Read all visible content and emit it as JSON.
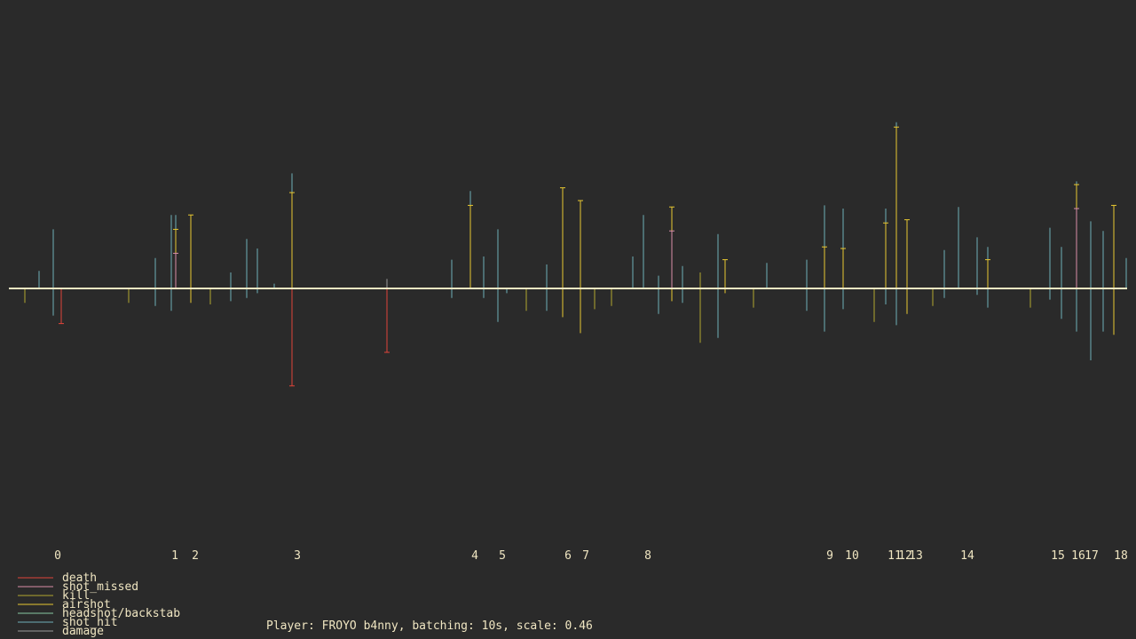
{
  "chart_data": {
    "type": "bar",
    "xlim": [
      0,
      1260
    ],
    "ylim": [
      -6,
      8
    ],
    "x_ticks": [
      {
        "label": "0",
        "x": 55
      },
      {
        "label": "1",
        "x": 187
      },
      {
        "label": "2",
        "x": 210
      },
      {
        "label": "3",
        "x": 325
      },
      {
        "label": "4",
        "x": 525
      },
      {
        "label": "5",
        "x": 556
      },
      {
        "label": "6",
        "x": 630
      },
      {
        "label": "7",
        "x": 650
      },
      {
        "label": "8",
        "x": 720
      },
      {
        "label": "9",
        "x": 925
      },
      {
        "label": "10",
        "x": 950
      },
      {
        "label": "11",
        "x": 998
      },
      {
        "label": "12",
        "x": 1010
      },
      {
        "label": "13",
        "x": 1022
      },
      {
        "label": "14",
        "x": 1080
      },
      {
        "label": "15",
        "x": 1182
      },
      {
        "label": "16",
        "x": 1205
      },
      {
        "label": "17",
        "x": 1220
      },
      {
        "label": "18",
        "x": 1253
      }
    ],
    "legend": [
      {
        "name": "death",
        "color": "#e0443a"
      },
      {
        "name": "shot_missed",
        "color": "#d98ea8"
      },
      {
        "name": "kill",
        "color": "#b3a830"
      },
      {
        "name": "airshot",
        "color": "#e8c832"
      },
      {
        "name": "headshot/backstab",
        "color": "#88c9a1"
      },
      {
        "name": "shot_hit",
        "color": "#6fb0b8"
      },
      {
        "name": "damage",
        "color": "#9a9a9a"
      }
    ],
    "bars": [
      {
        "x": 18,
        "up": 0,
        "down": 0.9,
        "series": "kill"
      },
      {
        "x": 34,
        "up": 1.1,
        "down": 0,
        "series": "shot_hit"
      },
      {
        "x": 50,
        "up": 3.7,
        "down": 1.7,
        "series": "shot_hit"
      },
      {
        "x": 59,
        "up": 0,
        "down": 2.2,
        "series": "death",
        "cap": true
      },
      {
        "x": 135,
        "up": 0,
        "down": 0.9,
        "series": "kill"
      },
      {
        "x": 165,
        "up": 1.9,
        "down": 1.1,
        "series": "shot_hit"
      },
      {
        "x": 183,
        "up": 4.6,
        "down": 1.4,
        "series": "shot_hit"
      },
      {
        "x": 188,
        "up": 4.6,
        "down": 0,
        "series": "shot_hit"
      },
      {
        "x": 188,
        "up": 3.7,
        "down": 0,
        "series": "airshot",
        "cap": true
      },
      {
        "x": 188,
        "up": 2.2,
        "down": 0,
        "series": "shot_missed",
        "cap": true
      },
      {
        "x": 205,
        "up": 4.6,
        "down": 0.9,
        "series": "airshot",
        "cap": true
      },
      {
        "x": 227,
        "up": 0,
        "down": 1.0,
        "series": "kill"
      },
      {
        "x": 250,
        "up": 1.0,
        "down": 0.8,
        "series": "shot_hit"
      },
      {
        "x": 268,
        "up": 3.1,
        "down": 0.6,
        "series": "shot_hit"
      },
      {
        "x": 280,
        "up": 2.5,
        "down": 0.3,
        "series": "shot_hit"
      },
      {
        "x": 299,
        "up": 0.3,
        "down": 0,
        "series": "shot_hit"
      },
      {
        "x": 319,
        "up": 7.2,
        "down": 3.1,
        "series": "shot_hit"
      },
      {
        "x": 319,
        "up": 6.0,
        "down": 0,
        "series": "airshot",
        "cap": true
      },
      {
        "x": 319,
        "up": 0,
        "down": 6.1,
        "series": "death",
        "cap": true
      },
      {
        "x": 426,
        "up": 0.6,
        "down": 1.6,
        "series": "damage"
      },
      {
        "x": 426,
        "up": 0,
        "down": 4.0,
        "series": "death",
        "cap": true
      },
      {
        "x": 499,
        "up": 1.8,
        "down": 0.6,
        "series": "shot_hit"
      },
      {
        "x": 520,
        "up": 6.1,
        "down": 0,
        "series": "shot_hit"
      },
      {
        "x": 520,
        "up": 5.2,
        "down": 0,
        "series": "airshot",
        "cap": true
      },
      {
        "x": 535,
        "up": 2.0,
        "down": 0.6,
        "series": "shot_hit"
      },
      {
        "x": 551,
        "up": 3.7,
        "down": 2.1,
        "series": "shot_hit"
      },
      {
        "x": 561,
        "up": 0,
        "down": 0.3,
        "series": "shot_hit"
      },
      {
        "x": 583,
        "up": 0,
        "down": 1.4,
        "series": "kill"
      },
      {
        "x": 606,
        "up": 1.5,
        "down": 1.4,
        "series": "shot_hit"
      },
      {
        "x": 624,
        "up": 6.3,
        "down": 1.8,
        "series": "airshot",
        "cap": true
      },
      {
        "x": 644,
        "up": 5.5,
        "down": 2.8,
        "series": "airshot",
        "cap": true
      },
      {
        "x": 660,
        "up": 0,
        "down": 1.3,
        "series": "kill"
      },
      {
        "x": 679,
        "up": 0,
        "down": 1.1,
        "series": "kill"
      },
      {
        "x": 703,
        "up": 2.0,
        "down": 0,
        "series": "shot_hit"
      },
      {
        "x": 715,
        "up": 4.6,
        "down": 0,
        "series": "shot_hit"
      },
      {
        "x": 732,
        "up": 0.8,
        "down": 1.6,
        "series": "shot_hit"
      },
      {
        "x": 747,
        "up": 5.1,
        "down": 0.8,
        "series": "airshot",
        "cap": true
      },
      {
        "x": 747,
        "up": 3.6,
        "down": 0,
        "series": "shot_missed",
        "cap": true
      },
      {
        "x": 759,
        "up": 1.4,
        "down": 0.9,
        "series": "shot_hit"
      },
      {
        "x": 779,
        "up": 1.0,
        "down": 3.4,
        "series": "kill"
      },
      {
        "x": 799,
        "up": 3.4,
        "down": 3.1,
        "series": "shot_hit"
      },
      {
        "x": 807,
        "up": 1.8,
        "down": 0.3,
        "series": "airshot",
        "cap": true
      },
      {
        "x": 839,
        "up": 0,
        "down": 1.2,
        "series": "kill"
      },
      {
        "x": 854,
        "up": 1.6,
        "down": 0,
        "series": "shot_hit"
      },
      {
        "x": 899,
        "up": 1.8,
        "down": 1.4,
        "series": "shot_hit"
      },
      {
        "x": 919,
        "up": 5.2,
        "down": 2.7,
        "series": "shot_hit"
      },
      {
        "x": 919,
        "up": 2.6,
        "down": 0,
        "series": "airshot",
        "cap": true
      },
      {
        "x": 940,
        "up": 5.0,
        "down": 1.3,
        "series": "shot_hit"
      },
      {
        "x": 940,
        "up": 2.5,
        "down": 0,
        "series": "airshot",
        "cap": true
      },
      {
        "x": 975,
        "up": 0,
        "down": 2.1,
        "series": "kill"
      },
      {
        "x": 988,
        "up": 5.0,
        "down": 1.0,
        "series": "shot_hit"
      },
      {
        "x": 988,
        "up": 4.1,
        "down": 0,
        "series": "airshot",
        "cap": true
      },
      {
        "x": 1000,
        "up": 10.4,
        "down": 2.3,
        "series": "shot_hit"
      },
      {
        "x": 1000,
        "up": 10.1,
        "down": 0,
        "series": "airshot",
        "cap": true
      },
      {
        "x": 1012,
        "up": 4.3,
        "down": 1.6,
        "series": "airshot",
        "cap": true
      },
      {
        "x": 1041,
        "up": 0,
        "down": 1.1,
        "series": "kill"
      },
      {
        "x": 1054,
        "up": 2.4,
        "down": 0.6,
        "series": "shot_hit"
      },
      {
        "x": 1070,
        "up": 5.1,
        "down": 0,
        "series": "shot_hit"
      },
      {
        "x": 1091,
        "up": 3.2,
        "down": 0.4,
        "series": "shot_hit"
      },
      {
        "x": 1103,
        "up": 2.6,
        "down": 1.2,
        "series": "shot_hit"
      },
      {
        "x": 1103,
        "up": 1.8,
        "down": 0,
        "series": "airshot",
        "cap": true
      },
      {
        "x": 1151,
        "up": 0,
        "down": 1.2,
        "series": "kill"
      },
      {
        "x": 1173,
        "up": 3.8,
        "down": 0.7,
        "series": "shot_hit"
      },
      {
        "x": 1186,
        "up": 2.6,
        "down": 1.9,
        "series": "shot_hit"
      },
      {
        "x": 1203,
        "up": 6.7,
        "down": 2.7,
        "series": "shot_hit"
      },
      {
        "x": 1203,
        "up": 6.5,
        "down": 0,
        "series": "airshot",
        "cap": true
      },
      {
        "x": 1203,
        "up": 5.0,
        "down": 0,
        "series": "shot_missed",
        "cap": true
      },
      {
        "x": 1219,
        "up": 4.2,
        "down": 4.5,
        "series": "shot_hit"
      },
      {
        "x": 1233,
        "up": 3.6,
        "down": 2.7,
        "series": "shot_hit"
      },
      {
        "x": 1245,
        "up": 5.2,
        "down": 2.9,
        "series": "airshot",
        "cap": true
      },
      {
        "x": 1259,
        "up": 1.9,
        "down": 0,
        "series": "shot_hit"
      }
    ]
  },
  "footer": {
    "text": "Player: FROYO b4nny, batching: 10s, scale: 0.46"
  }
}
